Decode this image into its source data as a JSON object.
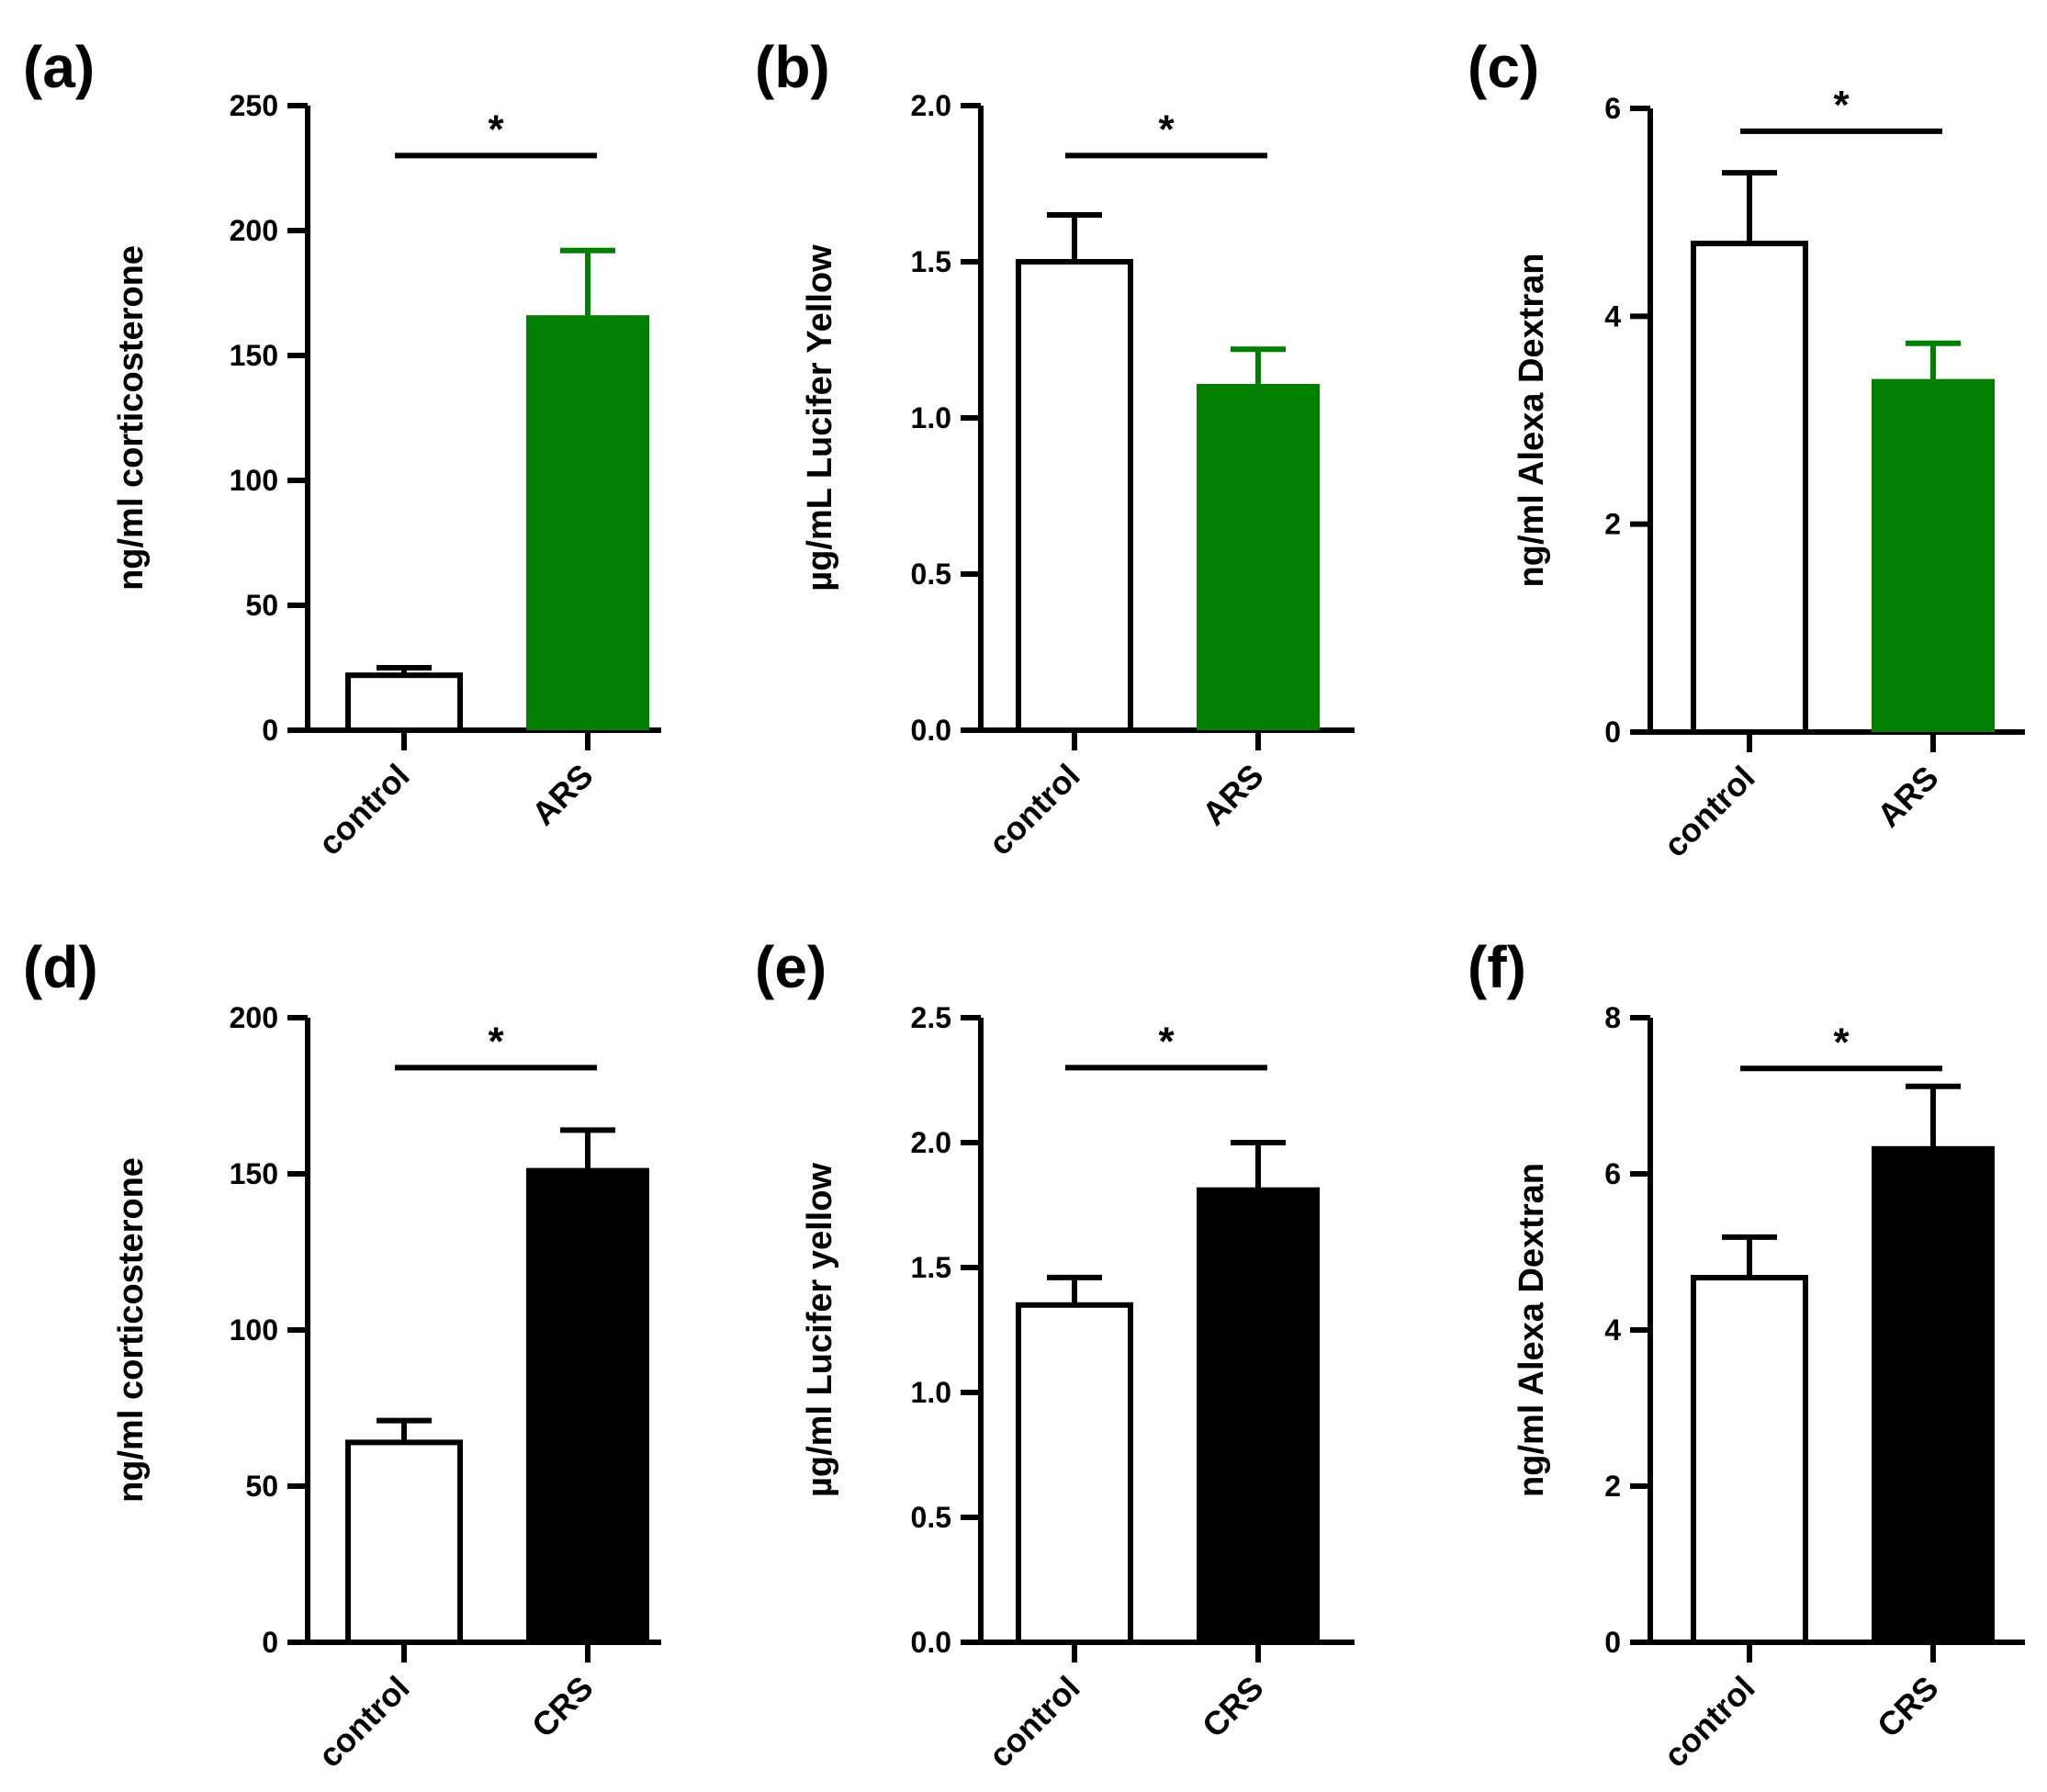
{
  "figure": {
    "colors": {
      "control_fill": "#ffffff",
      "ars_fill": "#007f00",
      "crs_fill": "#000000",
      "ink": "#000000"
    }
  },
  "chart_data": [
    {
      "panel": "(a)",
      "type": "bar",
      "categories": [
        "control",
        "ARS"
      ],
      "values": [
        22,
        165
      ],
      "errors": [
        3,
        27
      ],
      "fills": [
        "#ffffff",
        "#007f00"
      ],
      "xlabel": "",
      "ylabel": "ng/ml corticosterone",
      "ylim": [
        0,
        250
      ],
      "yticks": [
        0,
        50,
        100,
        150,
        200,
        250
      ],
      "ytick_labels": [
        "0",
        "50",
        "100",
        "150",
        "200",
        "250"
      ],
      "significance": {
        "label": "*",
        "level": 230
      },
      "grid": false
    },
    {
      "panel": "(b)",
      "type": "bar",
      "categories": [
        "control",
        "ARS"
      ],
      "values": [
        1.5,
        1.1
      ],
      "errors": [
        0.15,
        0.12
      ],
      "fills": [
        "#ffffff",
        "#007f00"
      ],
      "xlabel": "",
      "ylabel": "µg/mL Lucifer Yellow",
      "ylim": [
        0,
        2.0
      ],
      "yticks": [
        0,
        0.5,
        1.0,
        1.5,
        2.0
      ],
      "ytick_labels": [
        "0.0",
        "0.5",
        "1.0",
        "1.5",
        "2.0"
      ],
      "significance": {
        "label": "*",
        "level": 1.84
      },
      "grid": false
    },
    {
      "panel": "(c)",
      "type": "bar",
      "categories": [
        "control",
        "ARS"
      ],
      "values": [
        4.7,
        3.37
      ],
      "errors": [
        0.68,
        0.37
      ],
      "fills": [
        "#ffffff",
        "#007f00"
      ],
      "xlabel": "",
      "ylabel": "ng/ml  Alexa Dextran",
      "ylim": [
        0,
        6
      ],
      "yticks": [
        0,
        2,
        4,
        6
      ],
      "ytick_labels": [
        "0",
        "2",
        "4",
        "6"
      ],
      "significance": {
        "label": "*",
        "level": 5.78
      },
      "grid": false
    },
    {
      "panel": "(d)",
      "type": "bar",
      "categories": [
        "control",
        "CRS"
      ],
      "values": [
        64,
        151
      ],
      "errors": [
        7,
        13
      ],
      "fills": [
        "#ffffff",
        "#000000"
      ],
      "xlabel": "",
      "ylabel": "ng/ml corticosterone",
      "ylim": [
        0,
        200
      ],
      "yticks": [
        0,
        50,
        100,
        150,
        200
      ],
      "ytick_labels": [
        "0",
        "50",
        "100",
        "150",
        "200"
      ],
      "significance": {
        "label": "*",
        "level": 184
      },
      "grid": false
    },
    {
      "panel": "(e)",
      "type": "bar",
      "categories": [
        "control",
        "CRS"
      ],
      "values": [
        1.35,
        1.81
      ],
      "errors": [
        0.11,
        0.19
      ],
      "fills": [
        "#ffffff",
        "#000000"
      ],
      "xlabel": "",
      "ylabel": "µg/ml Lucifer yellow",
      "ylim": [
        0,
        2.5
      ],
      "yticks": [
        0,
        0.5,
        1.0,
        1.5,
        2.0,
        2.5
      ],
      "ytick_labels": [
        "0.0",
        "0.5",
        "1.0",
        "1.5",
        "2.0",
        "2.5"
      ],
      "significance": {
        "label": "*",
        "level": 2.3
      },
      "grid": false
    },
    {
      "panel": "(f)",
      "type": "bar",
      "categories": [
        "control",
        "CRS"
      ],
      "values": [
        4.67,
        6.32
      ],
      "errors": [
        0.52,
        0.8
      ],
      "fills": [
        "#ffffff",
        "#000000"
      ],
      "xlabel": "",
      "ylabel": "ng/ml Alexa Dextran",
      "ylim": [
        0,
        8
      ],
      "yticks": [
        0,
        2,
        4,
        6,
        8
      ],
      "ytick_labels": [
        "0",
        "2",
        "4",
        "6",
        "8"
      ],
      "significance": {
        "label": "*",
        "level": 7.35
      },
      "grid": false
    }
  ]
}
